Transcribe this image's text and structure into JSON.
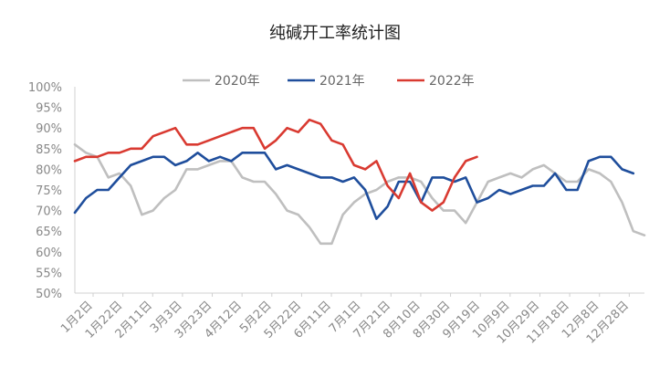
{
  "chart_data": {
    "type": "line",
    "title": "纯碱开工率统计图",
    "xlabel": "",
    "ylabel": "",
    "ylim": [
      50,
      100
    ],
    "y_ticks": [
      "50%",
      "55%",
      "60%",
      "65%",
      "70%",
      "75%",
      "80%",
      "85%",
      "90%",
      "95%",
      "100%"
    ],
    "categories": [
      "1月2日",
      "1月22日",
      "2月11日",
      "3月3日",
      "3月23日",
      "4月12日",
      "5月2日",
      "5月22日",
      "6月11日",
      "7月1日",
      "7月21日",
      "8月10日",
      "8月30日",
      "9月19日",
      "10月9日",
      "10月29日",
      "11月18日",
      "12月8日",
      "12月28日"
    ],
    "x_range": [
      0,
      51
    ],
    "series": [
      {
        "name": "2020年",
        "color": "#bfbfbf",
        "x": [
          0,
          1,
          2,
          3,
          4,
          5,
          6,
          7,
          8,
          9,
          10,
          11,
          12,
          13,
          14,
          15,
          16,
          17,
          18,
          19,
          20,
          21,
          22,
          23,
          24,
          25,
          26,
          27,
          28,
          29,
          30,
          31,
          32,
          33,
          34,
          35,
          36,
          37,
          38,
          39,
          40,
          41,
          42,
          43,
          44,
          45,
          46,
          47,
          48,
          49,
          50,
          51
        ],
        "values": [
          86,
          84,
          83,
          78,
          79,
          76,
          69,
          70,
          73,
          75,
          80,
          80,
          81,
          82,
          82,
          78,
          77,
          77,
          74,
          70,
          69,
          66,
          62,
          62,
          69,
          72,
          74,
          75,
          77,
          78,
          78,
          77,
          73,
          70,
          70,
          67,
          72,
          77,
          78,
          79,
          78,
          80,
          81,
          79,
          77,
          77,
          80,
          79,
          77,
          72,
          65,
          64
        ]
      },
      {
        "name": "2021年",
        "color": "#1f4e9c",
        "x": [
          0,
          1,
          2,
          3,
          4,
          5,
          6,
          7,
          8,
          9,
          10,
          11,
          12,
          13,
          14,
          15,
          16,
          17,
          18,
          19,
          20,
          21,
          22,
          23,
          24,
          25,
          26,
          27,
          28,
          29,
          30,
          31,
          32,
          33,
          34,
          35,
          36,
          37,
          38,
          39,
          40,
          41,
          42,
          43,
          44,
          45,
          46,
          47,
          48,
          49,
          50
        ],
        "values": [
          69.5,
          73,
          75,
          75,
          78,
          81,
          82,
          83,
          83,
          81,
          82,
          84,
          82,
          83,
          82,
          84,
          84,
          84,
          80,
          81,
          80,
          79,
          78,
          78,
          77,
          78,
          75,
          68,
          71,
          77,
          77,
          72,
          78,
          78,
          77,
          78,
          72,
          73,
          75,
          74,
          75,
          76,
          76,
          79,
          75,
          75,
          82,
          83,
          83,
          80,
          79
        ]
      },
      {
        "name": "2022年",
        "color": "#d93a31",
        "x": [
          0,
          1,
          2,
          3,
          4,
          5,
          6,
          7,
          8,
          9,
          10,
          11,
          12,
          13,
          14,
          15,
          16,
          17,
          18,
          19,
          20,
          21,
          22,
          23,
          24,
          25,
          26,
          27,
          28,
          29,
          30,
          31,
          32,
          33,
          34,
          35,
          36
        ],
        "values": [
          82,
          83,
          83,
          84,
          84,
          85,
          85,
          88,
          89,
          90,
          86,
          86,
          87,
          88,
          89,
          90,
          90,
          85,
          87,
          90,
          89,
          92,
          91,
          87,
          86,
          81,
          80,
          82,
          76,
          73,
          79,
          72,
          70,
          72,
          78,
          82,
          83
        ]
      }
    ]
  }
}
